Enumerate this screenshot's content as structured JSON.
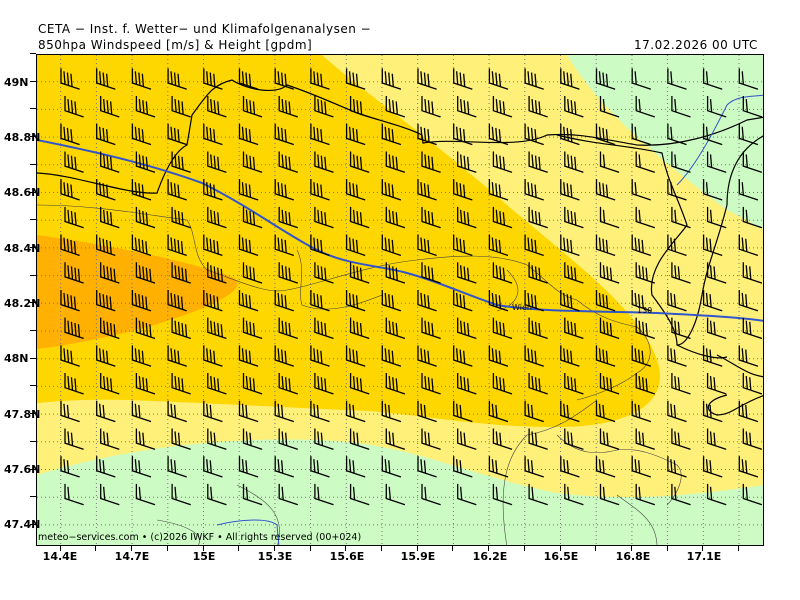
{
  "header": {
    "institute": "CETA − Inst. f. Wetter− und Klimafolgenanalysen −",
    "product": "850hpa Windspeed [m/s] & Height [gpdm]",
    "datetime": "17.02.2026 00 UTC"
  },
  "axes": {
    "lat_labels": [
      "49N",
      "48.8N",
      "48.6N",
      "48.4N",
      "48.2N",
      "48N",
      "47.8N",
      "47.6N",
      "47.4N"
    ],
    "lon_labels": [
      "14.4E",
      "14.7E",
      "15E",
      "15.3E",
      "15.6E",
      "15.9E",
      "16.2E",
      "16.5E",
      "16.8E",
      "17.1E"
    ]
  },
  "map": {
    "city_label": "Wien",
    "contour_label": "130",
    "copyright": "meteo−services.com • (c)2026 IWKF • All rights reserved (00+024)",
    "colors": {
      "light_green": "#ccfcc4",
      "light_yellow": "#fff07a",
      "gold": "#ffd700",
      "orange": "#ffb000",
      "contour": "#3355cc"
    }
  }
}
